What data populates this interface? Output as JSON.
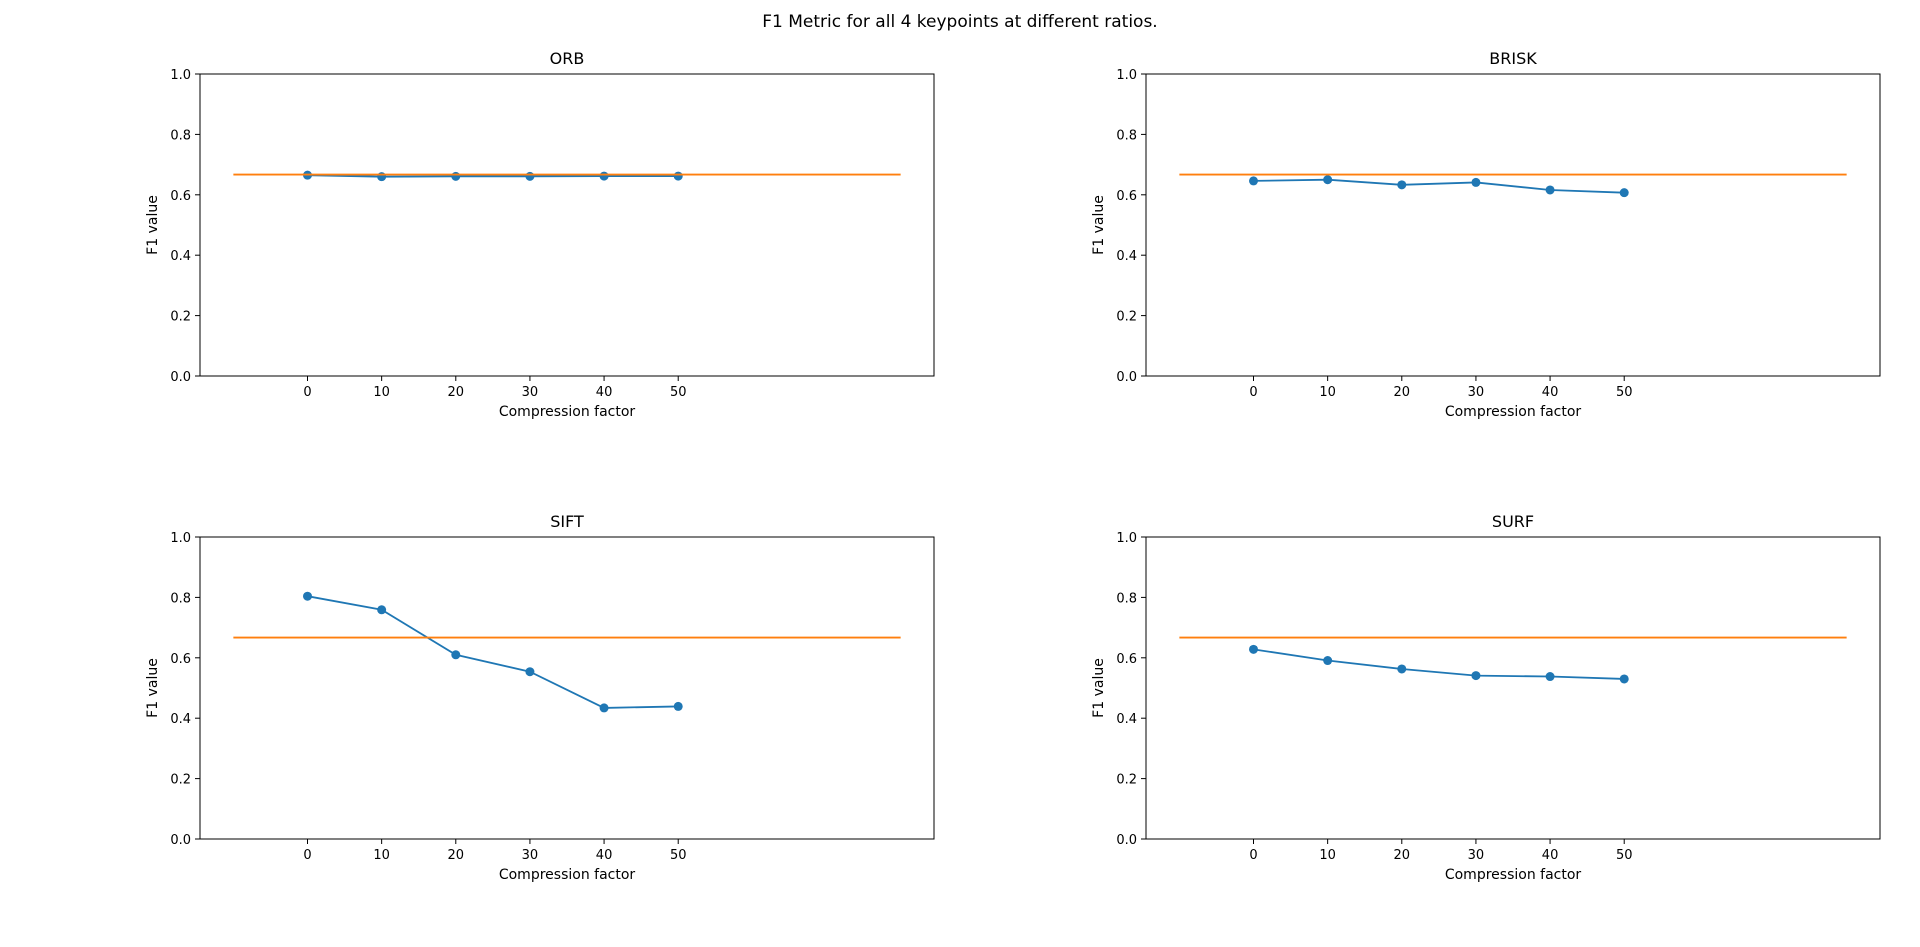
{
  "figure": {
    "suptitle": "F1 Metric for all 4 keypoints at different ratios."
  },
  "colors": {
    "series": "#1f77b4",
    "reference": "#ff7f0e",
    "axes": "#000000",
    "background": "#ffffff"
  },
  "chart_data": [
    {
      "type": "line",
      "title": "ORB",
      "xlabel": "Compression factor",
      "ylabel": "F1 value",
      "x": [
        0,
        10,
        20,
        30,
        40,
        50
      ],
      "xticks": [
        "0",
        "10",
        "20",
        "30",
        "40",
        "50"
      ],
      "xlim": [
        -14.5,
        84.5
      ],
      "ylim": [
        0,
        1
      ],
      "yticks": [
        "0.0",
        "0.2",
        "0.4",
        "0.6",
        "0.8",
        "1.0"
      ],
      "grid": false,
      "series": [
        {
          "values": [
            0.665,
            0.66,
            0.661,
            0.661,
            0.662,
            0.662
          ],
          "marker": "circle"
        }
      ],
      "reference_line": {
        "y": 0.667,
        "x_range": [
          -10,
          80
        ]
      }
    },
    {
      "type": "line",
      "title": "BRISK",
      "xlabel": "Compression factor",
      "ylabel": "F1 value",
      "x": [
        0,
        10,
        20,
        30,
        40,
        50
      ],
      "xticks": [
        "0",
        "10",
        "20",
        "30",
        "40",
        "50"
      ],
      "xlim": [
        -14.5,
        84.5
      ],
      "ylim": [
        0,
        1
      ],
      "yticks": [
        "0.0",
        "0.2",
        "0.4",
        "0.6",
        "0.8",
        "1.0"
      ],
      "grid": false,
      "series": [
        {
          "values": [
            0.646,
            0.65,
            0.633,
            0.641,
            0.616,
            0.607
          ],
          "marker": "circle"
        }
      ],
      "reference_line": {
        "y": 0.667,
        "x_range": [
          -10,
          80
        ]
      }
    },
    {
      "type": "line",
      "title": "SIFT",
      "xlabel": "Compression factor",
      "ylabel": "F1 value",
      "x": [
        0,
        10,
        20,
        30,
        40,
        50
      ],
      "xticks": [
        "0",
        "10",
        "20",
        "30",
        "40",
        "50"
      ],
      "xlim": [
        -14.5,
        84.5
      ],
      "ylim": [
        0,
        1
      ],
      "yticks": [
        "0.0",
        "0.2",
        "0.4",
        "0.6",
        "0.8",
        "1.0"
      ],
      "grid": false,
      "series": [
        {
          "values": [
            0.804,
            0.759,
            0.61,
            0.554,
            0.434,
            0.439
          ],
          "marker": "circle"
        }
      ],
      "reference_line": {
        "y": 0.667,
        "x_range": [
          -10,
          80
        ]
      }
    },
    {
      "type": "line",
      "title": "SURF",
      "xlabel": "Compression factor",
      "ylabel": "F1 value",
      "x": [
        0,
        10,
        20,
        30,
        40,
        50
      ],
      "xticks": [
        "0",
        "10",
        "20",
        "30",
        "40",
        "50"
      ],
      "xlim": [
        -14.5,
        84.5
      ],
      "ylim": [
        0,
        1
      ],
      "yticks": [
        "0.0",
        "0.2",
        "0.4",
        "0.6",
        "0.8",
        "1.0"
      ],
      "grid": false,
      "series": [
        {
          "values": [
            0.628,
            0.591,
            0.563,
            0.541,
            0.538,
            0.53
          ],
          "marker": "circle"
        }
      ],
      "reference_line": {
        "y": 0.667,
        "x_range": [
          -10,
          80
        ]
      }
    }
  ]
}
